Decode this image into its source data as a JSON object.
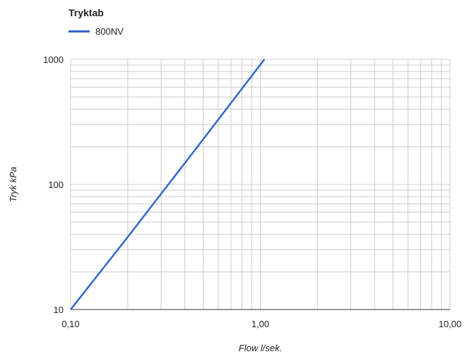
{
  "chart_data": {
    "type": "line",
    "title": "Tryktab",
    "xlabel": "Flow l/sek.",
    "ylabel": "Tryk kPa",
    "x_scale": "log",
    "y_scale": "log",
    "xlim": [
      0.1,
      10
    ],
    "ylim": [
      10,
      1000
    ],
    "x_ticks": [
      {
        "value": 0.1,
        "label": "0,10"
      },
      {
        "value": 1,
        "label": "1,00"
      },
      {
        "value": 10,
        "label": "10,00"
      }
    ],
    "y_ticks": [
      {
        "value": 10,
        "label": "10"
      },
      {
        "value": 100,
        "label": "100"
      },
      {
        "value": 1000,
        "label": "1000"
      }
    ],
    "grid": true,
    "legend_position": "top-left",
    "series": [
      {
        "name": "800NV",
        "color": "#3366cc",
        "points": [
          {
            "x": 0.1,
            "y": 10
          },
          {
            "x": 0.2,
            "y": 38
          },
          {
            "x": 0.5,
            "y": 230
          },
          {
            "x": 1.05,
            "y": 1000
          }
        ]
      }
    ]
  }
}
